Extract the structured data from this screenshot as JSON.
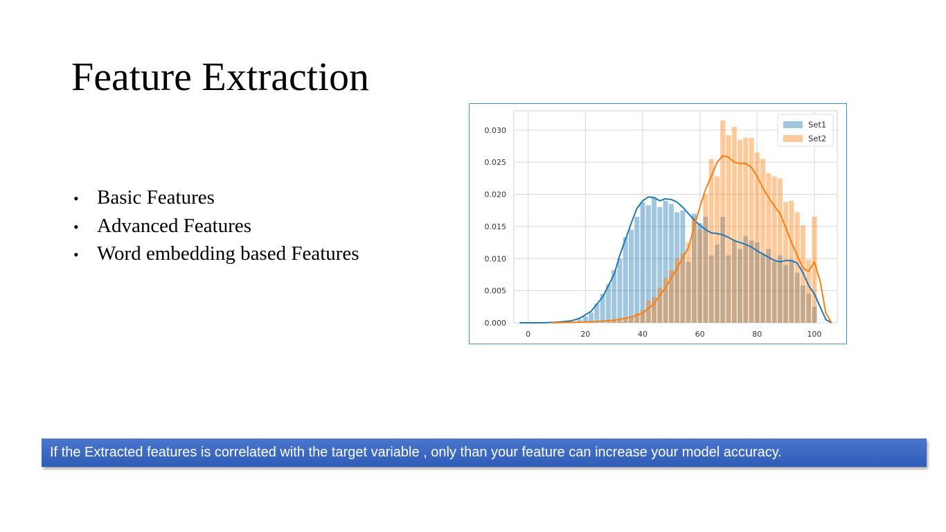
{
  "slide": {
    "title": "Feature Extraction",
    "bullets": [
      "Basic Features",
      "Advanced Features",
      "Word embedding based Features"
    ],
    "callout": "If the Extracted features is correlated with the target variable , only than your feature can increase your model accuracy."
  },
  "colors": {
    "set1": "#1f77b4",
    "set2": "#ff7f0e",
    "callout": "#3a66c2",
    "frame": "#4a90c8"
  },
  "chart_data": {
    "type": "histogram",
    "title": "",
    "xlabel": "",
    "ylabel": "",
    "xlim": [
      -5,
      108
    ],
    "ylim": [
      0,
      0.033
    ],
    "x_ticks": [
      "0",
      "20",
      "40",
      "60",
      "80",
      "100"
    ],
    "y_ticks": [
      "0.000",
      "0.005",
      "0.010",
      "0.015",
      "0.020",
      "0.025",
      "0.030"
    ],
    "grid": true,
    "legend_position": "top-right",
    "bin_width": 2,
    "series": [
      {
        "name": "Set1",
        "kde": true,
        "bins": [
          {
            "x": 16,
            "y": 0.0002
          },
          {
            "x": 18,
            "y": 0.0005
          },
          {
            "x": 20,
            "y": 0.001
          },
          {
            "x": 22,
            "y": 0.0016
          },
          {
            "x": 24,
            "y": 0.003
          },
          {
            "x": 26,
            "y": 0.0045
          },
          {
            "x": 28,
            "y": 0.006
          },
          {
            "x": 30,
            "y": 0.0082
          },
          {
            "x": 32,
            "y": 0.01
          },
          {
            "x": 34,
            "y": 0.0133
          },
          {
            "x": 36,
            "y": 0.0145
          },
          {
            "x": 38,
            "y": 0.0165
          },
          {
            "x": 40,
            "y": 0.0188
          },
          {
            "x": 42,
            "y": 0.0183
          },
          {
            "x": 44,
            "y": 0.0195
          },
          {
            "x": 46,
            "y": 0.018
          },
          {
            "x": 48,
            "y": 0.019
          },
          {
            "x": 50,
            "y": 0.0185
          },
          {
            "x": 52,
            "y": 0.0172
          },
          {
            "x": 54,
            "y": 0.0175
          },
          {
            "x": 56,
            "y": 0.0095
          },
          {
            "x": 58,
            "y": 0.017
          },
          {
            "x": 60,
            "y": 0.0155
          },
          {
            "x": 62,
            "y": 0.0165
          },
          {
            "x": 64,
            "y": 0.0105
          },
          {
            "x": 66,
            "y": 0.0122
          },
          {
            "x": 68,
            "y": 0.0165
          },
          {
            "x": 70,
            "y": 0.0105
          },
          {
            "x": 72,
            "y": 0.0128
          },
          {
            "x": 74,
            "y": 0.0115
          },
          {
            "x": 76,
            "y": 0.0135
          },
          {
            "x": 78,
            "y": 0.0128
          },
          {
            "x": 80,
            "y": 0.0125
          },
          {
            "x": 82,
            "y": 0.0108
          },
          {
            "x": 84,
            "y": 0.0115
          },
          {
            "x": 86,
            "y": 0.0095
          },
          {
            "x": 88,
            "y": 0.0105
          },
          {
            "x": 90,
            "y": 0.009
          },
          {
            "x": 92,
            "y": 0.0098
          },
          {
            "x": 94,
            "y": 0.0078
          },
          {
            "x": 96,
            "y": 0.0058
          },
          {
            "x": 98,
            "y": 0.0045
          },
          {
            "x": 100,
            "y": 0.0025
          }
        ]
      },
      {
        "name": "Set2",
        "kde": true,
        "bins": [
          {
            "x": 28,
            "y": 0.0002
          },
          {
            "x": 30,
            "y": 0.0003
          },
          {
            "x": 32,
            "y": 0.0005
          },
          {
            "x": 34,
            "y": 0.0008
          },
          {
            "x": 36,
            "y": 0.001
          },
          {
            "x": 38,
            "y": 0.0015
          },
          {
            "x": 40,
            "y": 0.002
          },
          {
            "x": 42,
            "y": 0.0035
          },
          {
            "x": 44,
            "y": 0.004
          },
          {
            "x": 46,
            "y": 0.0055
          },
          {
            "x": 48,
            "y": 0.007
          },
          {
            "x": 50,
            "y": 0.0082
          },
          {
            "x": 52,
            "y": 0.01
          },
          {
            "x": 54,
            "y": 0.0108
          },
          {
            "x": 56,
            "y": 0.0125
          },
          {
            "x": 58,
            "y": 0.0165
          },
          {
            "x": 60,
            "y": 0.0145
          },
          {
            "x": 62,
            "y": 0.02
          },
          {
            "x": 64,
            "y": 0.0255
          },
          {
            "x": 66,
            "y": 0.0228
          },
          {
            "x": 68,
            "y": 0.0315
          },
          {
            "x": 70,
            "y": 0.0292
          },
          {
            "x": 72,
            "y": 0.0305
          },
          {
            "x": 74,
            "y": 0.0285
          },
          {
            "x": 76,
            "y": 0.0288
          },
          {
            "x": 78,
            "y": 0.0288
          },
          {
            "x": 80,
            "y": 0.0265
          },
          {
            "x": 82,
            "y": 0.0255
          },
          {
            "x": 84,
            "y": 0.0233
          },
          {
            "x": 86,
            "y": 0.0228
          },
          {
            "x": 88,
            "y": 0.0225
          },
          {
            "x": 90,
            "y": 0.0188
          },
          {
            "x": 92,
            "y": 0.019
          },
          {
            "x": 94,
            "y": 0.0172
          },
          {
            "x": 96,
            "y": 0.0152
          },
          {
            "x": 98,
            "y": 0.0098
          },
          {
            "x": 100,
            "y": 0.0165
          }
        ]
      }
    ],
    "kde_curves": [
      {
        "name": "Set1",
        "points": [
          [
            -3,
            0.0
          ],
          [
            5,
            0.0
          ],
          [
            10,
            0.0001
          ],
          [
            15,
            0.0003
          ],
          [
            18,
            0.0007
          ],
          [
            22,
            0.0018
          ],
          [
            26,
            0.004
          ],
          [
            30,
            0.0075
          ],
          [
            32,
            0.0105
          ],
          [
            34,
            0.013
          ],
          [
            36,
            0.0155
          ],
          [
            38,
            0.0178
          ],
          [
            40,
            0.019
          ],
          [
            42,
            0.0196
          ],
          [
            44,
            0.0195
          ],
          [
            46,
            0.019
          ],
          [
            48,
            0.0193
          ],
          [
            50,
            0.0192
          ],
          [
            52,
            0.0188
          ],
          [
            54,
            0.018
          ],
          [
            56,
            0.017
          ],
          [
            58,
            0.016
          ],
          [
            60,
            0.0152
          ],
          [
            62,
            0.0145
          ],
          [
            64,
            0.014
          ],
          [
            66,
            0.0139
          ],
          [
            68,
            0.0137
          ],
          [
            70,
            0.0133
          ],
          [
            72,
            0.0128
          ],
          [
            74,
            0.0125
          ],
          [
            76,
            0.0122
          ],
          [
            78,
            0.0118
          ],
          [
            80,
            0.0112
          ],
          [
            82,
            0.0107
          ],
          [
            84,
            0.0102
          ],
          [
            86,
            0.0097
          ],
          [
            88,
            0.0095
          ],
          [
            90,
            0.0097
          ],
          [
            92,
            0.0097
          ],
          [
            94,
            0.0093
          ],
          [
            96,
            0.0078
          ],
          [
            98,
            0.0058
          ],
          [
            100,
            0.0045
          ],
          [
            102,
            0.0025
          ],
          [
            104,
            0.0005
          ],
          [
            106,
            0.0
          ]
        ]
      },
      {
        "name": "Set2",
        "points": [
          [
            8,
            0.0
          ],
          [
            18,
            0.0001
          ],
          [
            24,
            0.0002
          ],
          [
            30,
            0.0004
          ],
          [
            36,
            0.0009
          ],
          [
            40,
            0.0015
          ],
          [
            44,
            0.003
          ],
          [
            48,
            0.0055
          ],
          [
            52,
            0.0085
          ],
          [
            56,
            0.0117
          ],
          [
            58,
            0.015
          ],
          [
            60,
            0.018
          ],
          [
            62,
            0.0208
          ],
          [
            64,
            0.0228
          ],
          [
            66,
            0.025
          ],
          [
            68,
            0.026
          ],
          [
            70,
            0.0258
          ],
          [
            72,
            0.025
          ],
          [
            74,
            0.0248
          ],
          [
            76,
            0.0248
          ],
          [
            78,
            0.0242
          ],
          [
            80,
            0.0228
          ],
          [
            82,
            0.021
          ],
          [
            84,
            0.0195
          ],
          [
            86,
            0.0182
          ],
          [
            88,
            0.017
          ],
          [
            90,
            0.0148
          ],
          [
            92,
            0.0125
          ],
          [
            94,
            0.0105
          ],
          [
            96,
            0.0085
          ],
          [
            98,
            0.008
          ],
          [
            100,
            0.0095
          ],
          [
            102,
            0.0065
          ],
          [
            104,
            0.0015
          ],
          [
            106,
            0.0
          ]
        ]
      }
    ]
  }
}
